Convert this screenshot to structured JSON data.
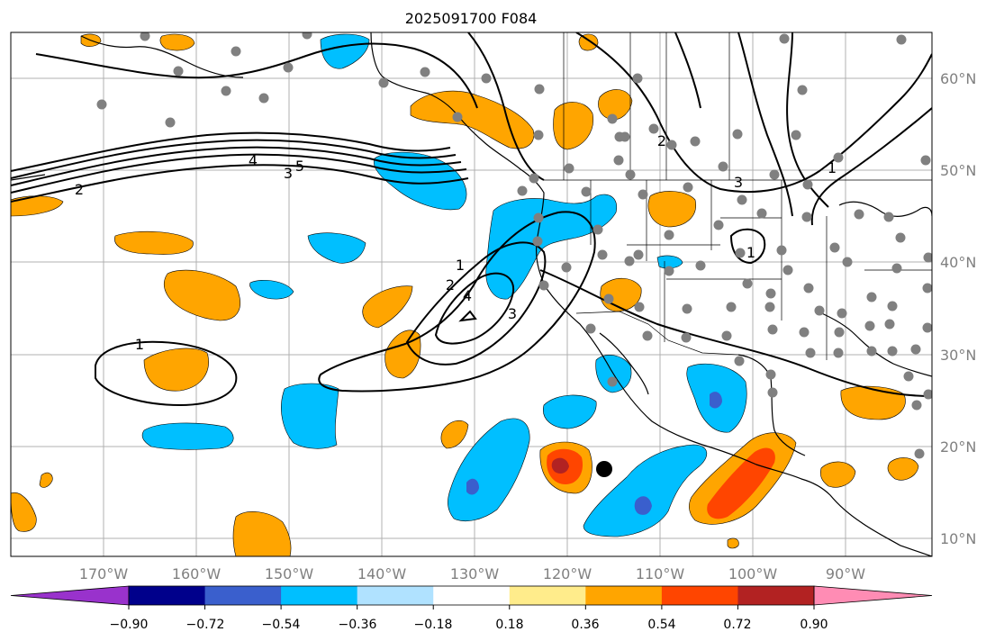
{
  "title": "2025091700 F084",
  "latitude_labels": [
    "60°N",
    "50°N",
    "40°N",
    "30°N",
    "20°N",
    "10°N"
  ],
  "longitude_labels": [
    "170°W",
    "160°W",
    "150°W",
    "140°W",
    "130°W",
    "120°W",
    "110°W",
    "100°W",
    "90°W"
  ],
  "contour_labels": [
    "1",
    "2",
    "4",
    "5",
    "3",
    "1",
    "2",
    "4",
    "3",
    "2",
    "3",
    "1",
    "1"
  ],
  "colorbar": {
    "tick_labels": [
      "−0.90",
      "−0.72",
      "−0.54",
      "−0.36",
      "−0.18",
      "0.18",
      "0.36",
      "0.54",
      "0.72",
      "0.90"
    ],
    "colors": [
      "#9932cc",
      "#00008b",
      "#3a5fcd",
      "#00bfff",
      "#b0e2ff",
      "#ffffff",
      "#ffec8b",
      "#ffa500",
      "#ff4500",
      "#b22222",
      "#ff8cb4"
    ]
  },
  "colors": {
    "gridline": "#b0b0b0",
    "station_dot": "#808080",
    "coast": "#000000",
    "contour": "#000000"
  }
}
